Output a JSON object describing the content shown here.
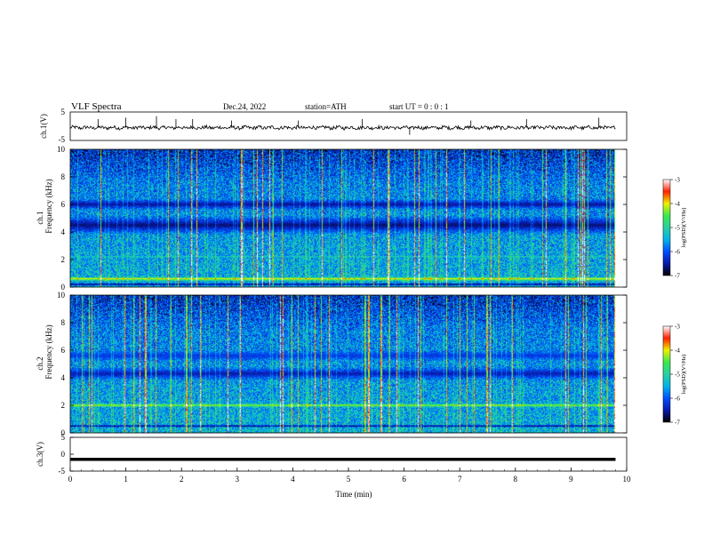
{
  "header": {
    "title": "VLF  Spectra",
    "date": "Dec.24, 2022",
    "station": "station=ATH",
    "start": "start  UT  =    0  : 0   : 1"
  },
  "colors": {
    "background": "#ffffff",
    "axes": "#000000",
    "trace": "#000000",
    "colormap": [
      "#000000",
      "#0a1aa8",
      "#0050ff",
      "#00b4e6",
      "#28d0a0",
      "#3ce850",
      "#f0f000",
      "#ff2000",
      "#ffffff"
    ]
  },
  "chart_data": [
    {
      "type": "line",
      "name_id": "ch1-waveform",
      "ylabel": "ch.1(V)",
      "ylim": [
        -5,
        5
      ],
      "yticks": [
        "5",
        "-5"
      ],
      "xlim": [
        0,
        10
      ],
      "baseline": -0.5,
      "data_end": 9.8,
      "spikes": [
        {
          "x": 0.5,
          "y": 2.5
        },
        {
          "x": 1.0,
          "y": 3.0
        },
        {
          "x": 1.55,
          "y": 3.5
        },
        {
          "x": 1.9,
          "y": 2.5
        },
        {
          "x": 2.2,
          "y": 2.5
        },
        {
          "x": 2.9,
          "y": 2.0
        },
        {
          "x": 4.1,
          "y": 2.0
        },
        {
          "x": 5.25,
          "y": 2.5
        },
        {
          "x": 6.1,
          "y": -3.0
        },
        {
          "x": 7.2,
          "y": 2.0
        },
        {
          "x": 8.2,
          "y": 2.5
        },
        {
          "x": 9.5,
          "y": 3.0
        }
      ]
    },
    {
      "type": "heatmap",
      "name_id": "ch1-spectrogram",
      "ylabel": "ch.1\nFrequency (kHz)",
      "ylabel_line1": "ch.1",
      "ylabel_line2": "Frequency (kHz)",
      "xlim": [
        0,
        10
      ],
      "ylim": [
        0,
        10
      ],
      "yticks": [
        "0",
        "2",
        "4",
        "6",
        "8",
        "10"
      ],
      "data_end": 9.8,
      "value_range": [
        -7,
        -3
      ],
      "colorbar": {
        "ticks": [
          "-3",
          "-4",
          "-5",
          "-6",
          "-7"
        ],
        "label": "log(PSD)(V²/Hz)"
      },
      "bands": [
        {
          "f": 4.5,
          "width": 0.7,
          "level": -6.8
        },
        {
          "f": 6.0,
          "width": 0.4,
          "level": -6.7
        },
        {
          "f": 2.2,
          "width": 0.05,
          "level": -4.8
        },
        {
          "f": 0.6,
          "width": 0.15,
          "level": -3.8
        },
        {
          "f": 0.2,
          "width": 0.12,
          "level": -7.0
        }
      ],
      "dark_top": true
    },
    {
      "type": "heatmap",
      "name_id": "ch2-spectrogram",
      "ylabel_line1": "ch.2",
      "ylabel_line2": "Frequency (kHz)",
      "xlim": [
        0,
        10
      ],
      "ylim": [
        0,
        10
      ],
      "yticks": [
        "0",
        "2",
        "4",
        "6",
        "8",
        "10"
      ],
      "data_end": 9.8,
      "value_range": [
        -7,
        -3
      ],
      "colorbar": {
        "ticks": [
          "-3",
          "-4",
          "-5",
          "-6",
          "-7"
        ],
        "label": "log(PSD)(V²/Hz)"
      },
      "bands": [
        {
          "f": 4.3,
          "width": 0.5,
          "level": -6.6
        },
        {
          "f": 5.6,
          "width": 0.4,
          "level": -6.3
        },
        {
          "f": 2.0,
          "width": 0.12,
          "level": -3.9
        },
        {
          "f": 0.5,
          "width": 0.1,
          "level": -7.0
        }
      ],
      "dark_top": true
    },
    {
      "type": "line",
      "name_id": "ch3-waveform",
      "ylabel": "ch.3(V)",
      "ylim": [
        -5,
        5
      ],
      "yticks": [
        "5",
        "0",
        "-5"
      ],
      "xlim": [
        0,
        10
      ],
      "baseline": -1.5,
      "data_end": 9.8,
      "xlabel": "Time  (min)",
      "xticks": [
        "0",
        "1",
        "2",
        "3",
        "4",
        "5",
        "6",
        "7",
        "8",
        "9",
        "10"
      ]
    }
  ]
}
